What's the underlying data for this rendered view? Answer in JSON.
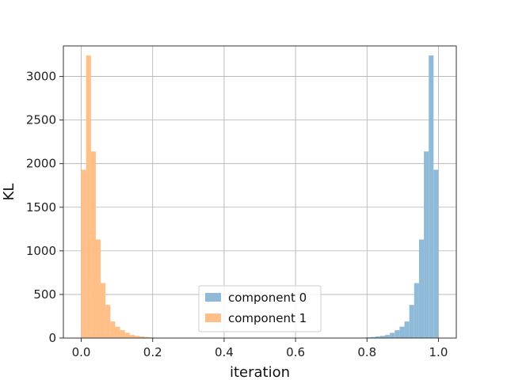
{
  "chart_data": {
    "type": "bar",
    "title": "",
    "xlabel": "iteration",
    "ylabel": "KL",
    "xlim": [
      -0.05,
      1.05
    ],
    "ylim": [
      0,
      3350
    ],
    "xticks": [
      0.0,
      0.2,
      0.4,
      0.6,
      0.8,
      1.0
    ],
    "xtick_labels": [
      "0.0",
      "0.2",
      "0.4",
      "0.6",
      "0.8",
      "1.0"
    ],
    "yticks": [
      0,
      500,
      1000,
      1500,
      2000,
      2500,
      3000
    ],
    "ytick_labels": [
      "0",
      "500",
      "1000",
      "1500",
      "2000",
      "2500",
      "3000"
    ],
    "grid": true,
    "legend_position": "bottom-center",
    "bin_width": 0.0136,
    "series": [
      {
        "name": "component 0",
        "color": "#8fbbd9",
        "bin_starts": [
          0.7824,
          0.796,
          0.8096,
          0.8232,
          0.8368,
          0.8504,
          0.864,
          0.8776,
          0.8912,
          0.9048,
          0.9184,
          0.932,
          0.9456,
          0.9592,
          0.9728,
          0.9864
        ],
        "values": [
          4,
          8,
          12,
          18,
          25,
          35,
          60,
          90,
          130,
          190,
          380,
          630,
          1130,
          2140,
          3240,
          1930
        ]
      },
      {
        "name": "component 1",
        "color": "#ffbf86",
        "bin_starts": [
          0.0,
          0.0136,
          0.0272,
          0.0408,
          0.0544,
          0.068,
          0.0816,
          0.0952,
          0.1088,
          0.1224,
          0.136,
          0.1496,
          0.1632,
          0.1768,
          0.1904,
          0.204
        ],
        "values": [
          1930,
          3240,
          2140,
          1130,
          630,
          380,
          190,
          130,
          90,
          60,
          35,
          25,
          18,
          12,
          8,
          4
        ]
      }
    ]
  }
}
